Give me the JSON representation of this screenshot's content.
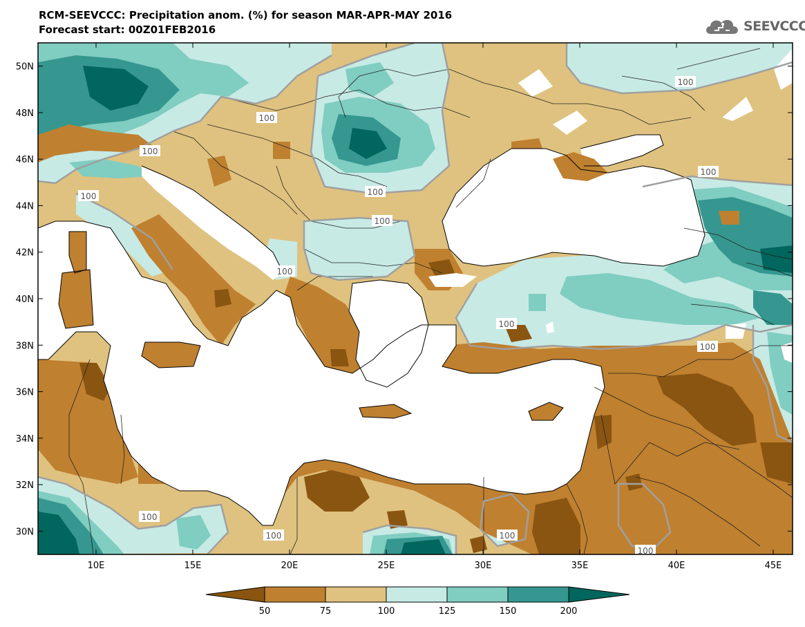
{
  "title": {
    "line1": "RCM-SEEVCCC: Precipitation anom. (%) for season MAR-APR-MAY 2016",
    "line2": "Forecast start: 00Z01FEB2016"
  },
  "logo": {
    "text": "SEEVCCC",
    "icon": "cloud-logo-icon"
  },
  "map": {
    "lat_labels": [
      "50N",
      "48N",
      "46N",
      "44N",
      "42N",
      "40N",
      "38N",
      "36N",
      "34N",
      "32N",
      "30N"
    ],
    "lon_labels": [
      "10E",
      "15E",
      "20E",
      "25E",
      "30E",
      "35E",
      "40E",
      "45E"
    ],
    "lat_range": [
      29,
      51
    ],
    "lon_range": [
      7,
      46
    ],
    "contour_label": "100",
    "colors": {
      "ocean": "#ffffff",
      "lt50": "#8a5510",
      "c50_75": "#bf8030",
      "c75_100": "#dfc27f",
      "c100_125": "#c7eae5",
      "c125_150": "#80cdc1",
      "c150_200": "#35978f",
      "gt200": "#01665e",
      "contour": "#a0a0a0"
    }
  },
  "colorbar": {
    "labels": [
      "50",
      "75",
      "100",
      "125",
      "150",
      "200"
    ],
    "colors": [
      "#8a5510",
      "#bf8030",
      "#dfc27f",
      "#c7eae5",
      "#80cdc1",
      "#35978f",
      "#01665e"
    ]
  }
}
